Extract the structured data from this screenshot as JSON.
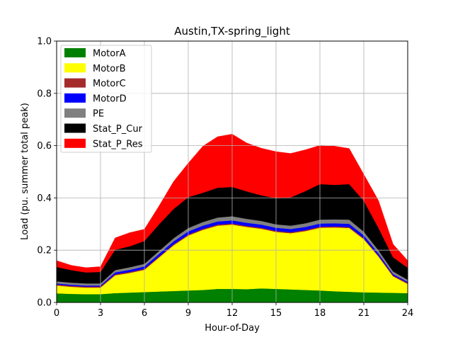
{
  "chart_data": {
    "type": "area",
    "title": "Austin,TX-spring_light",
    "xlabel": "Hour-of-Day",
    "ylabel": "Load (pu. summer total peak)",
    "xlim": [
      0,
      24
    ],
    "ylim": [
      0,
      1.0
    ],
    "xticks": [
      0,
      3,
      6,
      9,
      12,
      15,
      18,
      21,
      24
    ],
    "yticks": [
      0.0,
      0.2,
      0.4,
      0.6,
      0.8,
      1.0
    ],
    "xtick_labels": [
      "0",
      "3",
      "6",
      "9",
      "12",
      "15",
      "18",
      "21",
      "24"
    ],
    "ytick_labels": [
      "0.0",
      "0.2",
      "0.4",
      "0.6",
      "0.8",
      "1.0"
    ],
    "grid": true,
    "legend_position": "upper-left",
    "stacked": true,
    "x": [
      0,
      1,
      2,
      3,
      4,
      5,
      6,
      7,
      8,
      9,
      10,
      11,
      12,
      13,
      14,
      15,
      16,
      17,
      18,
      19,
      20,
      21,
      22,
      23,
      24
    ],
    "series": [
      {
        "name": "MotorA",
        "color": "#008000",
        "values": [
          0.035,
          0.033,
          0.032,
          0.032,
          0.036,
          0.038,
          0.04,
          0.042,
          0.044,
          0.046,
          0.048,
          0.052,
          0.052,
          0.051,
          0.054,
          0.052,
          0.05,
          0.048,
          0.046,
          0.043,
          0.041,
          0.039,
          0.038,
          0.037,
          0.036
        ]
      },
      {
        "name": "MotorB",
        "color": "#ffff00",
        "values": [
          0.03,
          0.027,
          0.025,
          0.025,
          0.068,
          0.075,
          0.085,
          0.13,
          0.175,
          0.21,
          0.23,
          0.242,
          0.246,
          0.238,
          0.228,
          0.218,
          0.215,
          0.225,
          0.24,
          0.244,
          0.244,
          0.203,
          0.138,
          0.063,
          0.035
        ]
      },
      {
        "name": "MotorC",
        "color": "#a52a2a",
        "values": [
          0.004,
          0.004,
          0.004,
          0.004,
          0.004,
          0.004,
          0.004,
          0.004,
          0.004,
          0.004,
          0.004,
          0.004,
          0.004,
          0.004,
          0.004,
          0.004,
          0.004,
          0.004,
          0.004,
          0.004,
          0.004,
          0.004,
          0.004,
          0.004,
          0.004
        ]
      },
      {
        "name": "MotorD",
        "color": "#0000ff",
        "values": [
          0.004,
          0.004,
          0.004,
          0.004,
          0.007,
          0.008,
          0.009,
          0.01,
          0.011,
          0.012,
          0.012,
          0.012,
          0.012,
          0.012,
          0.012,
          0.012,
          0.012,
          0.012,
          0.012,
          0.012,
          0.012,
          0.011,
          0.008,
          0.005,
          0.004
        ]
      },
      {
        "name": "PE",
        "color": "#808080",
        "values": [
          0.008,
          0.008,
          0.008,
          0.008,
          0.009,
          0.01,
          0.01,
          0.011,
          0.012,
          0.013,
          0.014,
          0.015,
          0.016,
          0.015,
          0.014,
          0.013,
          0.013,
          0.014,
          0.015,
          0.015,
          0.016,
          0.014,
          0.012,
          0.01,
          0.008
        ]
      },
      {
        "name": "Stat_P_Cur",
        "color": "#000000",
        "values": [
          0.055,
          0.048,
          0.042,
          0.044,
          0.078,
          0.08,
          0.087,
          0.102,
          0.112,
          0.118,
          0.112,
          0.114,
          0.112,
          0.105,
          0.098,
          0.1,
          0.108,
          0.123,
          0.136,
          0.132,
          0.136,
          0.118,
          0.086,
          0.054,
          0.046
        ]
      },
      {
        "name": "Stat_P_Res",
        "color": "#ff0000",
        "values": [
          0.024,
          0.018,
          0.018,
          0.02,
          0.045,
          0.052,
          0.045,
          0.07,
          0.105,
          0.13,
          0.178,
          0.195,
          0.202,
          0.185,
          0.18,
          0.178,
          0.168,
          0.158,
          0.148,
          0.148,
          0.136,
          0.101,
          0.104,
          0.05,
          0.027
        ]
      }
    ]
  }
}
